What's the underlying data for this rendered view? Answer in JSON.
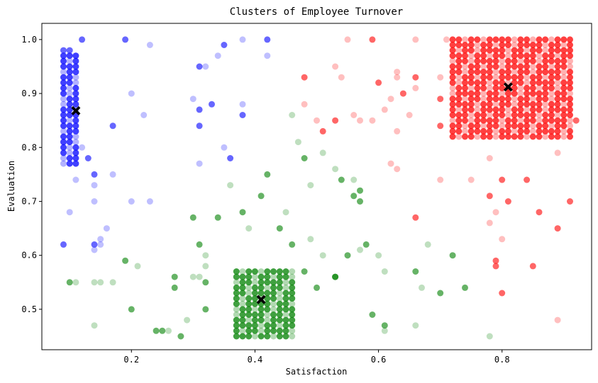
{
  "chart_data": {
    "type": "scatter",
    "title": "Clusters of Employee Turnover",
    "xlabel": "Satisfaction",
    "ylabel": "Evaluation",
    "xlim": [
      0.055,
      0.945
    ],
    "ylim": [
      0.425,
      1.03
    ],
    "xticks": [
      0.2,
      0.4,
      0.6,
      0.8
    ],
    "xtick_labels": [
      "0.2",
      "0.4",
      "0.6",
      "0.8"
    ],
    "yticks": [
      0.5,
      0.6,
      0.7,
      0.8,
      0.9,
      1.0
    ],
    "ytick_labels": [
      "0.5",
      "0.6",
      "0.7",
      "0.8",
      "0.9",
      "1.0"
    ],
    "grid": false,
    "legend": "none",
    "series": [
      {
        "color": "#0000ff",
        "cluster": "low satisfaction / high evaluation",
        "dense_block": {
          "x_range": [
            0.09,
            0.11
          ],
          "y_range": [
            0.77,
            0.97
          ],
          "x_step": 0.01,
          "y_step": 0.01
        },
        "points": [
          [
            0.09,
            0.98
          ],
          [
            0.1,
            0.98
          ],
          [
            0.12,
            1.0
          ],
          [
            0.19,
            1.0
          ],
          [
            0.23,
            0.99
          ],
          [
            0.38,
            1.0
          ],
          [
            0.42,
            1.0
          ],
          [
            0.42,
            0.97
          ],
          [
            0.35,
            0.99
          ],
          [
            0.34,
            0.97
          ],
          [
            0.32,
            0.95
          ],
          [
            0.31,
            0.95
          ],
          [
            0.3,
            0.89
          ],
          [
            0.33,
            0.88
          ],
          [
            0.31,
            0.87
          ],
          [
            0.38,
            0.88
          ],
          [
            0.38,
            0.86
          ],
          [
            0.2,
            0.9
          ],
          [
            0.22,
            0.86
          ],
          [
            0.17,
            0.84
          ],
          [
            0.31,
            0.84
          ],
          [
            0.12,
            0.8
          ],
          [
            0.13,
            0.78
          ],
          [
            0.35,
            0.8
          ],
          [
            0.36,
            0.78
          ],
          [
            0.31,
            0.77
          ],
          [
            0.11,
            0.74
          ],
          [
            0.14,
            0.75
          ],
          [
            0.17,
            0.75
          ],
          [
            0.14,
            0.73
          ],
          [
            0.14,
            0.7
          ],
          [
            0.2,
            0.7
          ],
          [
            0.23,
            0.7
          ],
          [
            0.1,
            0.68
          ],
          [
            0.16,
            0.65
          ],
          [
            0.15,
            0.63
          ],
          [
            0.09,
            0.62
          ],
          [
            0.14,
            0.62
          ],
          [
            0.15,
            0.62
          ],
          [
            0.14,
            0.61
          ]
        ],
        "alphas": [
          0.6,
          0.6,
          0.6,
          0.6,
          0.25,
          0.25,
          0.6,
          0.25,
          0.6,
          0.25,
          0.25,
          0.6,
          0.25,
          0.6,
          0.6,
          0.25,
          0.6,
          0.25,
          0.25,
          0.6,
          0.6,
          0.25,
          0.6,
          0.25,
          0.6,
          0.25,
          0.25,
          0.6,
          0.25,
          0.25,
          0.25,
          0.25,
          0.25,
          0.25,
          0.25,
          0.25,
          0.6,
          0.6,
          0.25,
          0.25
        ]
      },
      {
        "color": "#008000",
        "cluster": "medium satisfaction / low evaluation",
        "dense_block": {
          "x_range": [
            0.37,
            0.46
          ],
          "y_range": [
            0.45,
            0.57
          ],
          "x_step": 0.01,
          "y_step": 0.01
        },
        "points": [
          [
            0.46,
            0.86
          ],
          [
            0.47,
            0.81
          ],
          [
            0.48,
            0.78
          ],
          [
            0.51,
            0.79
          ],
          [
            0.53,
            0.76
          ],
          [
            0.54,
            0.74
          ],
          [
            0.56,
            0.74
          ],
          [
            0.57,
            0.72
          ],
          [
            0.56,
            0.71
          ],
          [
            0.57,
            0.7
          ],
          [
            0.42,
            0.75
          ],
          [
            0.41,
            0.71
          ],
          [
            0.36,
            0.73
          ],
          [
            0.38,
            0.68
          ],
          [
            0.34,
            0.67
          ],
          [
            0.3,
            0.67
          ],
          [
            0.45,
            0.68
          ],
          [
            0.39,
            0.65
          ],
          [
            0.44,
            0.65
          ],
          [
            0.49,
            0.73
          ],
          [
            0.46,
            0.62
          ],
          [
            0.49,
            0.63
          ],
          [
            0.58,
            0.62
          ],
          [
            0.57,
            0.61
          ],
          [
            0.55,
            0.6
          ],
          [
            0.51,
            0.6
          ],
          [
            0.6,
            0.6
          ],
          [
            0.72,
            0.6
          ],
          [
            0.68,
            0.62
          ],
          [
            0.31,
            0.62
          ],
          [
            0.32,
            0.6
          ],
          [
            0.32,
            0.58
          ],
          [
            0.21,
            0.58
          ],
          [
            0.19,
            0.59
          ],
          [
            0.48,
            0.57
          ],
          [
            0.53,
            0.56
          ],
          [
            0.53,
            0.56
          ],
          [
            0.61,
            0.57
          ],
          [
            0.66,
            0.57
          ],
          [
            0.3,
            0.56
          ],
          [
            0.31,
            0.56
          ],
          [
            0.27,
            0.56
          ],
          [
            0.1,
            0.55
          ],
          [
            0.11,
            0.55
          ],
          [
            0.14,
            0.55
          ],
          [
            0.15,
            0.55
          ],
          [
            0.17,
            0.55
          ],
          [
            0.32,
            0.55
          ],
          [
            0.27,
            0.54
          ],
          [
            0.5,
            0.54
          ],
          [
            0.67,
            0.54
          ],
          [
            0.7,
            0.53
          ],
          [
            0.74,
            0.54
          ],
          [
            0.2,
            0.5
          ],
          [
            0.32,
            0.5
          ],
          [
            0.29,
            0.48
          ],
          [
            0.59,
            0.49
          ],
          [
            0.61,
            0.47
          ],
          [
            0.61,
            0.46
          ],
          [
            0.66,
            0.47
          ],
          [
            0.14,
            0.47
          ],
          [
            0.24,
            0.46
          ],
          [
            0.25,
            0.46
          ],
          [
            0.26,
            0.46
          ],
          [
            0.28,
            0.45
          ],
          [
            0.78,
            0.45
          ]
        ],
        "alphas": [
          0.25,
          0.25,
          0.6,
          0.25,
          0.25,
          0.6,
          0.25,
          0.6,
          0.6,
          0.6,
          0.6,
          0.6,
          0.25,
          0.6,
          0.6,
          0.6,
          0.25,
          0.25,
          0.6,
          0.25,
          0.6,
          0.25,
          0.6,
          0.25,
          0.6,
          0.25,
          0.25,
          0.6,
          0.25,
          0.6,
          0.25,
          0.25,
          0.25,
          0.6,
          0.6,
          0.6,
          0.6,
          0.25,
          0.6,
          0.25,
          0.25,
          0.6,
          0.6,
          0.25,
          0.25,
          0.25,
          0.25,
          0.6,
          0.6,
          0.6,
          0.25,
          0.6,
          0.6,
          0.6,
          0.6,
          0.25,
          0.6,
          0.6,
          0.25,
          0.25,
          0.25,
          0.6,
          0.6,
          0.25,
          0.6,
          0.25
        ]
      },
      {
        "color": "#ff0000",
        "cluster": "high satisfaction / high evaluation",
        "dense_block": {
          "x_range": [
            0.72,
            0.91
          ],
          "y_range": [
            0.82,
            1.0
          ],
          "x_step": 0.01,
          "y_step": 0.01
        },
        "points": [
          [
            0.55,
            1.0
          ],
          [
            0.59,
            1.0
          ],
          [
            0.66,
            1.0
          ],
          [
            0.71,
            1.0
          ],
          [
            0.48,
            0.93
          ],
          [
            0.53,
            0.95
          ],
          [
            0.54,
            0.93
          ],
          [
            0.6,
            0.92
          ],
          [
            0.62,
            0.89
          ],
          [
            0.63,
            0.93
          ],
          [
            0.63,
            0.94
          ],
          [
            0.64,
            0.9
          ],
          [
            0.66,
            0.93
          ],
          [
            0.66,
            0.91
          ],
          [
            0.7,
            0.93
          ],
          [
            0.7,
            0.89
          ],
          [
            0.48,
            0.88
          ],
          [
            0.5,
            0.85
          ],
          [
            0.51,
            0.83
          ],
          [
            0.53,
            0.85
          ],
          [
            0.56,
            0.86
          ],
          [
            0.57,
            0.85
          ],
          [
            0.59,
            0.85
          ],
          [
            0.61,
            0.87
          ],
          [
            0.63,
            0.83
          ],
          [
            0.65,
            0.86
          ],
          [
            0.7,
            0.84
          ],
          [
            0.92,
            0.85
          ],
          [
            0.89,
            0.79
          ],
          [
            0.78,
            0.78
          ],
          [
            0.62,
            0.77
          ],
          [
            0.63,
            0.76
          ],
          [
            0.7,
            0.74
          ],
          [
            0.75,
            0.74
          ],
          [
            0.8,
            0.74
          ],
          [
            0.84,
            0.74
          ],
          [
            0.78,
            0.71
          ],
          [
            0.81,
            0.7
          ],
          [
            0.91,
            0.7
          ],
          [
            0.79,
            0.68
          ],
          [
            0.86,
            0.68
          ],
          [
            0.66,
            0.67
          ],
          [
            0.78,
            0.66
          ],
          [
            0.89,
            0.65
          ],
          [
            0.8,
            0.63
          ],
          [
            0.79,
            0.59
          ],
          [
            0.79,
            0.58
          ],
          [
            0.85,
            0.58
          ],
          [
            0.8,
            0.53
          ],
          [
            0.89,
            0.48
          ]
        ],
        "alphas": [
          0.25,
          0.6,
          0.25,
          0.25,
          0.6,
          0.25,
          0.25,
          0.6,
          0.25,
          0.25,
          0.25,
          0.6,
          0.6,
          0.25,
          0.25,
          0.6,
          0.25,
          0.25,
          0.6,
          0.6,
          0.25,
          0.25,
          0.25,
          0.25,
          0.25,
          0.25,
          0.6,
          0.6,
          0.25,
          0.25,
          0.25,
          0.25,
          0.25,
          0.25,
          0.6,
          0.6,
          0.6,
          0.6,
          0.6,
          0.25,
          0.6,
          0.6,
          0.25,
          0.6,
          0.25,
          0.6,
          0.6,
          0.6,
          0.6,
          0.25
        ]
      }
    ],
    "centroids": {
      "color": "#000000",
      "marker": "X",
      "points": [
        [
          0.11,
          0.868
        ],
        [
          0.41,
          0.518
        ],
        [
          0.81,
          0.912
        ]
      ]
    }
  }
}
